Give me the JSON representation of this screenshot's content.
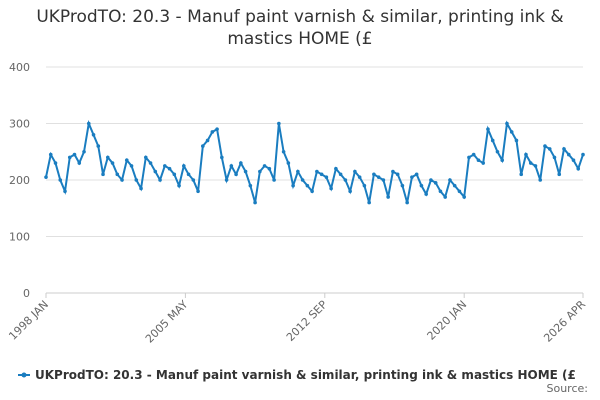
{
  "chart_data": {
    "type": "line",
    "title": "UKProdTO: 20.3 - Manuf paint varnish & similar, printing ink & mastics HOME (£",
    "source": "Source:",
    "x": [
      "1998 JAN",
      "1998 APR",
      "1998 JUL",
      "1998 OCT",
      "1999 JAN",
      "1999 APR",
      "1999 JUL",
      "1999 OCT",
      "2000 JAN",
      "2000 APR",
      "2000 JUL",
      "2000 OCT",
      "2001 JAN",
      "2001 APR",
      "2001 JUL",
      "2001 OCT",
      "2002 JAN",
      "2002 APR",
      "2002 JUL",
      "2002 OCT",
      "2003 JAN",
      "2003 APR",
      "2003 JUL",
      "2003 OCT",
      "2004 JAN",
      "2004 APR",
      "2004 JUL",
      "2004 OCT",
      "2005 JAN",
      "2005 APR",
      "2005 JUL",
      "2005 OCT",
      "2006 JAN",
      "2006 APR",
      "2006 JUL",
      "2006 OCT",
      "2007 JAN",
      "2007 APR",
      "2007 JUL",
      "2007 OCT",
      "2008 JAN",
      "2008 APR",
      "2008 JUL",
      "2008 OCT",
      "2009 JAN",
      "2009 APR",
      "2009 JUL",
      "2009 OCT",
      "2010 JAN",
      "2010 APR",
      "2010 JUL",
      "2010 OCT",
      "2011 JAN",
      "2011 APR",
      "2011 JUL",
      "2011 OCT",
      "2012 JAN",
      "2012 APR",
      "2012 JUL",
      "2012 OCT",
      "2013 JAN",
      "2013 APR",
      "2013 JUL",
      "2013 OCT",
      "2014 JAN",
      "2014 APR",
      "2014 JUL",
      "2014 OCT",
      "2015 JAN",
      "2015 APR",
      "2015 JUL",
      "2015 OCT",
      "2016 JAN",
      "2016 APR",
      "2016 JUL",
      "2016 OCT",
      "2017 JAN",
      "2017 APR",
      "2017 JUL",
      "2017 OCT",
      "2018 JAN",
      "2018 APR",
      "2018 JUL",
      "2018 OCT",
      "2019 JAN",
      "2019 APR",
      "2019 JUL",
      "2019 OCT",
      "2020 JAN",
      "2020 APR",
      "2020 JUL",
      "2020 OCT",
      "2021 JAN",
      "2021 APR",
      "2021 JUL",
      "2021 OCT",
      "2022 JAN",
      "2022 APR",
      "2022 JUL",
      "2022 OCT",
      "2023 JAN",
      "2023 APR",
      "2023 JUL",
      "2023 OCT",
      "2024 JAN",
      "2024 APR",
      "2024 JUL",
      "2024 OCT",
      "2025 JAN",
      "2025 APR",
      "2025 JUL",
      "2025 OCT",
      "2026 JAN",
      "2026 APR"
    ],
    "series": [
      {
        "name": "UKProdTO: 20.3 - Manuf paint varnish & similar, printing ink & mastics HOME (£",
        "color": "#1a7dc0",
        "values": [
          205,
          245,
          230,
          200,
          180,
          240,
          245,
          230,
          250,
          300,
          280,
          260,
          210,
          240,
          230,
          210,
          200,
          235,
          225,
          200,
          185,
          240,
          230,
          215,
          200,
          225,
          220,
          210,
          190,
          225,
          210,
          200,
          180,
          260,
          270,
          285,
          290,
          240,
          200,
          225,
          210,
          230,
          215,
          190,
          160,
          215,
          225,
          220,
          200,
          300,
          250,
          230,
          190,
          215,
          200,
          190,
          180,
          215,
          210,
          205,
          185,
          220,
          210,
          200,
          180,
          215,
          205,
          190,
          160,
          210,
          205,
          200,
          170,
          215,
          210,
          190,
          160,
          205,
          210,
          190,
          175,
          200,
          195,
          180,
          170,
          200,
          190,
          180,
          170,
          240,
          245,
          235,
          230,
          290,
          270,
          250,
          235,
          300,
          285,
          270,
          210,
          245,
          230,
          225,
          200,
          260,
          255,
          240,
          210,
          255,
          245,
          235,
          220,
          245
        ]
      }
    ],
    "xticks": [
      "1998 JAN",
      "2005 MAY",
      "2012 SEP",
      "2020 JAN",
      "2026 APR"
    ],
    "ylim": [
      0,
      400
    ],
    "yticks": [
      0,
      100,
      200,
      300,
      400
    ],
    "grid": true
  }
}
